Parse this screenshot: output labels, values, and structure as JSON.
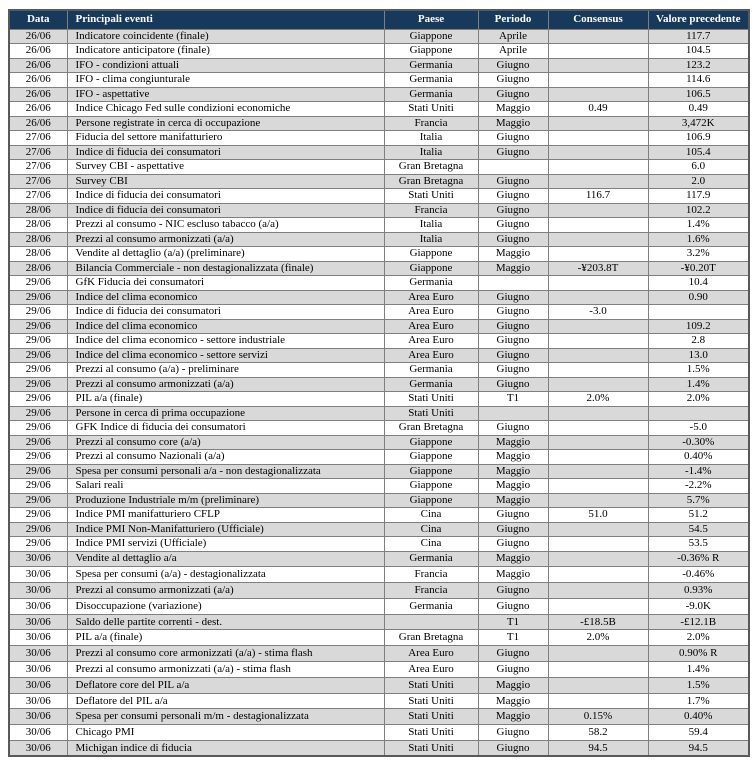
{
  "colors": {
    "header_bg": "#17395C",
    "header_text": "#FFFFFF",
    "stripe_row": "#D9D9D9",
    "plain_row": "#FFFFFF",
    "grid_border": "#7F7F7F",
    "outer_border": "#595959",
    "body_text": "#000000"
  },
  "table": {
    "columns": [
      {
        "key": "data",
        "label": "Data"
      },
      {
        "key": "evento",
        "label": "Principali eventi"
      },
      {
        "key": "paese",
        "label": "Paese"
      },
      {
        "key": "periodo",
        "label": "Periodo"
      },
      {
        "key": "consensus",
        "label": "Consensus"
      },
      {
        "key": "valore",
        "label": "Valore precedente"
      }
    ],
    "rows": [
      {
        "data": "26/06",
        "evento": "Indicatore coincidente (finale)",
        "paese": "Giappone",
        "periodo": "Aprile",
        "consensus": "",
        "valore": "117.7"
      },
      {
        "data": "26/06",
        "evento": "Indicatore anticipatore (finale)",
        "paese": "Giappone",
        "periodo": "Aprile",
        "consensus": "",
        "valore": "104.5"
      },
      {
        "data": "26/06",
        "evento": "IFO - condizioni attuali",
        "paese": "Germania",
        "periodo": "Giugno",
        "consensus": "",
        "valore": "123.2"
      },
      {
        "data": "26/06",
        "evento": "IFO - clima congiunturale",
        "paese": "Germania",
        "periodo": "Giugno",
        "consensus": "",
        "valore": "114.6"
      },
      {
        "data": "26/06",
        "evento": "IFO - aspettative",
        "paese": "Germania",
        "periodo": "Giugno",
        "consensus": "",
        "valore": "106.5"
      },
      {
        "data": "26/06",
        "evento": "Indice Chicago Fed sulle condizioni economiche",
        "paese": "Stati Uniti",
        "periodo": "Maggio",
        "consensus": "0.49",
        "valore": "0.49"
      },
      {
        "data": "26/06",
        "evento": "Persone registrate in cerca di occupazione",
        "paese": "Francia",
        "periodo": "Maggio",
        "consensus": "",
        "valore": "3,472K"
      },
      {
        "data": "27/06",
        "evento": "Fiducia del settore manifatturiero",
        "paese": "Italia",
        "periodo": "Giugno",
        "consensus": "",
        "valore": "106.9"
      },
      {
        "data": "27/06",
        "evento": "Indice di fiducia dei consumatori",
        "paese": "Italia",
        "periodo": "Giugno",
        "consensus": "",
        "valore": "105.4"
      },
      {
        "data": "27/06",
        "evento": "Survey CBI - aspettative",
        "paese": "Gran Bretagna",
        "periodo": "",
        "consensus": "",
        "valore": "6.0"
      },
      {
        "data": "27/06",
        "evento": "Survey CBI",
        "paese": "Gran Bretagna",
        "periodo": "Giugno",
        "consensus": "",
        "valore": "2.0"
      },
      {
        "data": "27/06",
        "evento": "Indice di fiducia dei consumatori",
        "paese": "Stati Uniti",
        "periodo": "Giugno",
        "consensus": "116.7",
        "valore": "117.9"
      },
      {
        "data": "28/06",
        "evento": "Indice di fiducia dei consumatori",
        "paese": "Francia",
        "periodo": "Giugno",
        "consensus": "",
        "valore": "102.2"
      },
      {
        "data": "28/06",
        "evento": "Prezzi al consumo - NIC escluso tabacco (a/a)",
        "paese": "Italia",
        "periodo": "Giugno",
        "consensus": "",
        "valore": "1.4%"
      },
      {
        "data": "28/06",
        "evento": "Prezzi al consumo armonizzati (a/a)",
        "paese": "Italia",
        "periodo": "Giugno",
        "consensus": "",
        "valore": "1.6%"
      },
      {
        "data": "28/06",
        "evento": "Vendite al dettaglio (a/a)  (preliminare)",
        "paese": "Giappone",
        "periodo": "Maggio",
        "consensus": "",
        "valore": "3.2%"
      },
      {
        "data": "28/06",
        "evento": "Bilancia Commerciale -  non destagionalizzata (finale)",
        "paese": "Giappone",
        "periodo": "Maggio",
        "consensus": "-¥203.8T",
        "valore": "-¥0.20T"
      },
      {
        "data": "29/06",
        "evento": "GfK Fiducia dei consumatori",
        "paese": "Germania",
        "periodo": "",
        "consensus": "",
        "valore": "10.4"
      },
      {
        "data": "29/06",
        "evento": "Indice del clima economico",
        "paese": "Area Euro",
        "periodo": "Giugno",
        "consensus": "",
        "valore": "0.90"
      },
      {
        "data": "29/06",
        "evento": "Indice di fiducia dei consumatori",
        "paese": "Area Euro",
        "periodo": "Giugno",
        "consensus": "-3.0",
        "valore": ""
      },
      {
        "data": "29/06",
        "evento": "Indice del clima economico",
        "paese": "Area Euro",
        "periodo": "Giugno",
        "consensus": "",
        "valore": "109.2"
      },
      {
        "data": "29/06",
        "evento": "Indice del clima economico - settore industriale",
        "paese": "Area Euro",
        "periodo": "Giugno",
        "consensus": "",
        "valore": "2.8"
      },
      {
        "data": "29/06",
        "evento": "Indice del clima economico - settore servizi",
        "paese": "Area Euro",
        "periodo": "Giugno",
        "consensus": "",
        "valore": "13.0"
      },
      {
        "data": "29/06",
        "evento": "Prezzi al consumo (a/a) - preliminare",
        "paese": "Germania",
        "periodo": "Giugno",
        "consensus": "",
        "valore": "1.5%"
      },
      {
        "data": "29/06",
        "evento": "Prezzi al consumo armonizzati (a/a)",
        "paese": "Germania",
        "periodo": "Giugno",
        "consensus": "",
        "valore": "1.4%"
      },
      {
        "data": "29/06",
        "evento": "PIL a/a (finale)",
        "paese": "Stati Uniti",
        "periodo": "T1",
        "consensus": "2.0%",
        "valore": "2.0%"
      },
      {
        "data": "29/06",
        "evento": "Persone in cerca di prima occupazione",
        "paese": "Stati Uniti",
        "periodo": "",
        "consensus": "",
        "valore": ""
      },
      {
        "data": "29/06",
        "evento": "GFK Indice di fiducia dei consumatori",
        "paese": "Gran Bretagna",
        "periodo": "Giugno",
        "consensus": "",
        "valore": "-5.0"
      },
      {
        "data": "29/06",
        "evento": "Prezzi al consumo core (a/a)",
        "paese": "Giappone",
        "periodo": "Maggio",
        "consensus": "",
        "valore": "-0.30%"
      },
      {
        "data": "29/06",
        "evento": "Prezzi al consumo Nazionali (a/a)",
        "paese": "Giappone",
        "periodo": "Maggio",
        "consensus": "",
        "valore": "0.40%"
      },
      {
        "data": "29/06",
        "evento": "Spesa per consumi personali a/a - non destagionalizzata",
        "paese": "Giappone",
        "periodo": "Maggio",
        "consensus": "",
        "valore": "-1.4%"
      },
      {
        "data": "29/06",
        "evento": "Salari reali",
        "paese": "Giappone",
        "periodo": "Maggio",
        "consensus": "",
        "valore": "-2.2%"
      },
      {
        "data": "29/06",
        "evento": "Produzione Industriale m/m (preliminare)",
        "paese": "Giappone",
        "periodo": "Maggio",
        "consensus": "",
        "valore": "5.7%"
      },
      {
        "data": "29/06",
        "evento": "Indice PMI manifatturiero CFLP",
        "paese": "Cina",
        "periodo": "Giugno",
        "consensus": "51.0",
        "valore": "51.2"
      },
      {
        "data": "29/06",
        "evento": "Indice PMI  Non-Manifatturiero (Ufficiale)",
        "paese": "Cina",
        "periodo": "Giugno",
        "consensus": "",
        "valore": "54.5"
      },
      {
        "data": "29/06",
        "evento": "Indice PMI  servizi (Ufficiale)",
        "paese": "Cina",
        "periodo": "Giugno",
        "consensus": "",
        "valore": "53.5"
      },
      {
        "data": "30/06",
        "evento": "Vendite al dettaglio a/a",
        "paese": "Germania",
        "periodo": "Maggio",
        "consensus": "",
        "valore": "-0.36% R"
      },
      {
        "data": "30/06",
        "evento": "Spesa per consumi  (a/a) - destagionalizzata",
        "paese": "Francia",
        "periodo": "Maggio",
        "consensus": "",
        "valore": "-0.46%"
      },
      {
        "data": "30/06",
        "evento": "Prezzi al consumo armonizzati (a/a)",
        "paese": "Francia",
        "periodo": "Giugno",
        "consensus": "",
        "valore": "0.93%"
      },
      {
        "data": "30/06",
        "evento": "Disoccupazione (variazione)",
        "paese": "Germania",
        "periodo": "Giugno",
        "consensus": "",
        "valore": "-9.0K"
      },
      {
        "data": "30/06",
        "evento": "Saldo delle partite correnti - dest.",
        "paese": "",
        "periodo": "T1",
        "consensus": "-£18.5B",
        "valore": "-£12.1B"
      },
      {
        "data": "30/06",
        "evento": "PIL a/a (finale)",
        "paese": "Gran Bretagna",
        "periodo": "T1",
        "consensus": "2.0%",
        "valore": "2.0%"
      },
      {
        "data": "30/06",
        "evento": "Prezzi al consumo core armonizzati (a/a) - stima flash",
        "paese": "Area Euro",
        "periodo": "Giugno",
        "consensus": "",
        "valore": "0.90% R"
      },
      {
        "data": "30/06",
        "evento": "Prezzi al consumo armonizzati (a/a) - stima flash",
        "paese": "Area Euro",
        "periodo": "Giugno",
        "consensus": "",
        "valore": "1.4%"
      },
      {
        "data": "30/06",
        "evento": "Deflatore  core del PIL a/a",
        "paese": "Stati Uniti",
        "periodo": "Maggio",
        "consensus": "",
        "valore": "1.5%"
      },
      {
        "data": "30/06",
        "evento": "Deflatore del PIL a/a",
        "paese": "Stati Uniti",
        "periodo": "Maggio",
        "consensus": "",
        "valore": "1.7%"
      },
      {
        "data": "30/06",
        "evento": "Spesa per consumi personali m/m - destagionalizzata",
        "paese": "Stati Uniti",
        "periodo": "Maggio",
        "consensus": "0.15%",
        "valore": "0.40%"
      },
      {
        "data": "30/06",
        "evento": "Chicago PMI",
        "paese": "Stati Uniti",
        "periodo": "Giugno",
        "consensus": "58.2",
        "valore": "59.4"
      },
      {
        "data": "30/06",
        "evento": "Michigan indice di fiducia",
        "paese": "Stati Uniti",
        "periodo": "Giugno",
        "consensus": "94.5",
        "valore": "94.5"
      }
    ]
  }
}
